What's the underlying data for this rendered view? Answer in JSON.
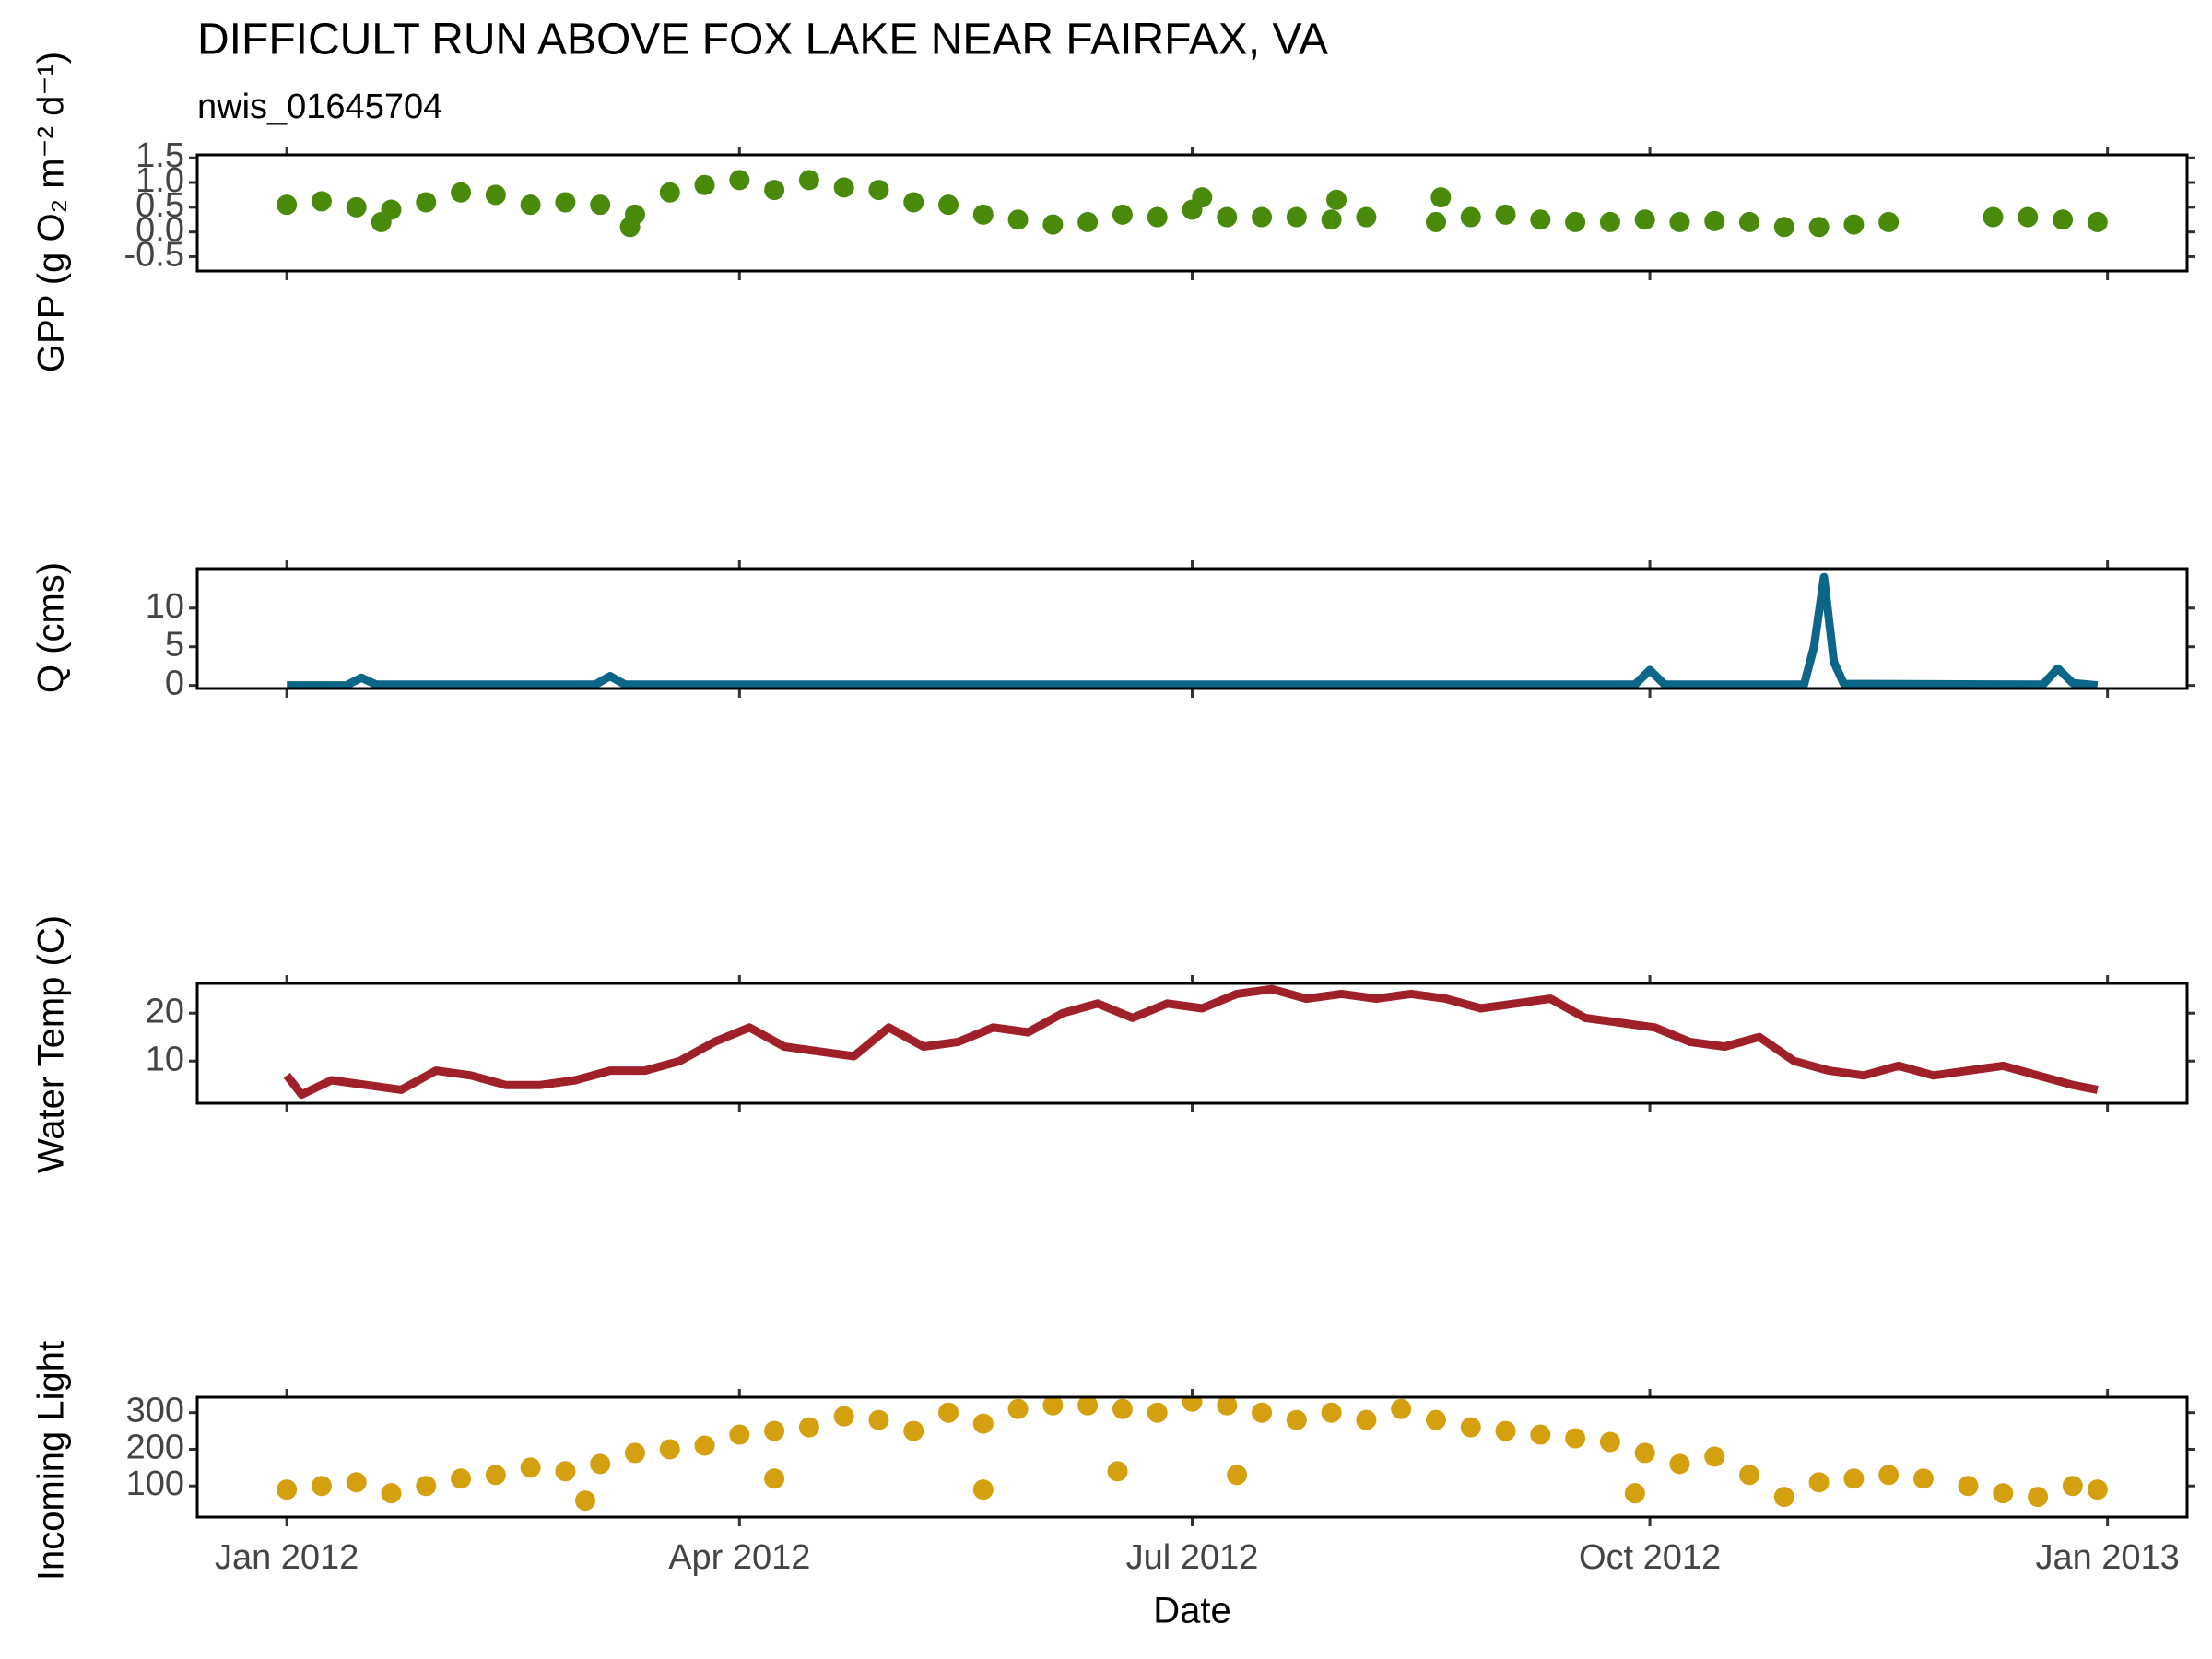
{
  "chart_data": [
    {
      "type": "scatter",
      "title": "DIFFICULT RUN ABOVE FOX LAKE NEAR FAIRFAX, VA",
      "subtitle": "nwis_01645704",
      "y_label": "GPP (g  O₂ m⁻² d⁻¹)",
      "color": "#4a8a0a",
      "x": [
        "2012-01-01",
        "2012-01-08",
        "2012-01-15",
        "2012-01-20",
        "2012-01-22",
        "2012-01-29",
        "2012-02-05",
        "2012-02-12",
        "2012-02-19",
        "2012-02-26",
        "2012-03-04",
        "2012-03-10",
        "2012-03-11",
        "2012-03-18",
        "2012-03-25",
        "2012-04-01",
        "2012-04-08",
        "2012-04-15",
        "2012-04-22",
        "2012-04-29",
        "2012-05-06",
        "2012-05-13",
        "2012-05-20",
        "2012-05-27",
        "2012-06-03",
        "2012-06-10",
        "2012-06-17",
        "2012-06-24",
        "2012-07-01",
        "2012-07-03",
        "2012-07-08",
        "2012-07-15",
        "2012-07-22",
        "2012-07-29",
        "2012-07-30",
        "2012-08-05",
        "2012-08-19",
        "2012-08-20",
        "2012-08-26",
        "2012-09-02",
        "2012-09-09",
        "2012-09-16",
        "2012-09-23",
        "2012-09-30",
        "2012-10-07",
        "2012-10-14",
        "2012-10-21",
        "2012-10-28",
        "2012-11-04",
        "2012-11-11",
        "2012-11-18",
        "2012-12-09",
        "2012-12-16",
        "2012-12-23",
        "2012-12-30"
      ],
      "values": [
        0.55,
        0.62,
        0.5,
        0.2,
        0.45,
        0.6,
        0.8,
        0.75,
        0.55,
        0.6,
        0.55,
        0.1,
        0.35,
        0.8,
        0.95,
        1.05,
        0.85,
        1.05,
        0.9,
        0.85,
        0.6,
        0.55,
        0.35,
        0.25,
        0.15,
        0.2,
        0.35,
        0.3,
        0.45,
        0.7,
        0.3,
        0.3,
        0.3,
        0.25,
        0.65,
        0.3,
        0.2,
        0.7,
        0.3,
        0.35,
        0.25,
        0.2,
        0.2,
        0.25,
        0.2,
        0.22,
        0.2,
        0.1,
        0.1,
        0.15,
        0.2,
        0.3,
        0.3,
        0.25,
        0.2
      ],
      "ylim": [
        -0.79,
        1.56
      ],
      "yticks": [
        -0.5,
        {
          "value": 0,
          "label": "0.0"
        },
        0.5,
        {
          "value": 1,
          "label": "1.0"
        },
        1.5
      ]
    },
    {
      "type": "line",
      "y_label": "Q (cms)",
      "color": "#0c6688",
      "x": [
        "2012-01-01",
        "2012-01-13",
        "2012-01-16",
        "2012-01-19",
        "2012-03-03",
        "2012-03-06",
        "2012-03-09",
        "2012-09-28",
        "2012-10-01",
        "2012-10-04",
        "2012-11-01",
        "2012-11-03",
        "2012-11-05",
        "2012-11-07",
        "2012-11-09",
        "2012-12-19",
        "2012-12-22",
        "2012-12-25",
        "2012-12-30"
      ],
      "values": [
        0,
        0,
        1.0,
        0.1,
        0.1,
        1.2,
        0.1,
        0.1,
        2.0,
        0.1,
        0.1,
        5,
        14,
        3,
        0.2,
        0.1,
        2.2,
        0.3,
        0
      ],
      "ylim": [
        -0.4,
        15.1
      ],
      "yticks": [
        0,
        5,
        10
      ]
    },
    {
      "type": "line",
      "y_label": "Water Temp (C)",
      "color": "#a0202a",
      "x": [
        "2012-01-01",
        "2012-01-04",
        "2012-01-10",
        "2012-01-17",
        "2012-01-24",
        "2012-01-31",
        "2012-02-07",
        "2012-02-14",
        "2012-02-21",
        "2012-02-28",
        "2012-03-06",
        "2012-03-13",
        "2012-03-20",
        "2012-03-27",
        "2012-04-03",
        "2012-04-10",
        "2012-04-17",
        "2012-04-24",
        "2012-05-01",
        "2012-05-08",
        "2012-05-15",
        "2012-05-22",
        "2012-05-29",
        "2012-06-05",
        "2012-06-12",
        "2012-06-19",
        "2012-06-26",
        "2012-07-03",
        "2012-07-10",
        "2012-07-17",
        "2012-07-24",
        "2012-07-31",
        "2012-08-07",
        "2012-08-14",
        "2012-08-21",
        "2012-08-28",
        "2012-09-04",
        "2012-09-11",
        "2012-09-18",
        "2012-09-25",
        "2012-10-02",
        "2012-10-09",
        "2012-10-16",
        "2012-10-23",
        "2012-10-30",
        "2012-11-06",
        "2012-11-13",
        "2012-11-20",
        "2012-11-27",
        "2012-12-04",
        "2012-12-11",
        "2012-12-18",
        "2012-12-25",
        "2012-12-30"
      ],
      "values": [
        7,
        3,
        6,
        5,
        4,
        8,
        7,
        5,
        5,
        6,
        8,
        8,
        10,
        14,
        17,
        13,
        12,
        11,
        17,
        13,
        14,
        17,
        16,
        20,
        22,
        19,
        22,
        21,
        24,
        25,
        23,
        24,
        23,
        24,
        23,
        21,
        22,
        23,
        19,
        18,
        17,
        14,
        13,
        15,
        10,
        8,
        7,
        9,
        7,
        8,
        9,
        7,
        5,
        4
      ],
      "ylim": [
        1.2,
        26.2
      ],
      "yticks": [
        10,
        20
      ]
    },
    {
      "type": "scatter",
      "y_label": "Incoming Light",
      "x_label": "Date",
      "color": "#d4a010",
      "x": [
        "2012-01-01",
        "2012-01-08",
        "2012-01-15",
        "2012-01-22",
        "2012-01-29",
        "2012-02-05",
        "2012-02-12",
        "2012-02-19",
        "2012-02-26",
        "2012-03-01",
        "2012-03-04",
        "2012-03-11",
        "2012-03-18",
        "2012-03-25",
        "2012-04-01",
        "2012-04-08",
        "2012-04-08",
        "2012-04-15",
        "2012-04-22",
        "2012-04-29",
        "2012-05-06",
        "2012-05-13",
        "2012-05-20",
        "2012-05-20",
        "2012-05-27",
        "2012-06-03",
        "2012-06-10",
        "2012-06-16",
        "2012-06-17",
        "2012-06-24",
        "2012-07-01",
        "2012-07-08",
        "2012-07-10",
        "2012-07-15",
        "2012-07-22",
        "2012-07-29",
        "2012-08-05",
        "2012-08-12",
        "2012-08-19",
        "2012-08-26",
        "2012-09-02",
        "2012-09-09",
        "2012-09-16",
        "2012-09-23",
        "2012-09-28",
        "2012-09-30",
        "2012-10-07",
        "2012-10-14",
        "2012-10-21",
        "2012-10-28",
        "2012-11-04",
        "2012-11-11",
        "2012-11-18",
        "2012-11-25",
        "2012-12-04",
        "2012-12-11",
        "2012-12-18",
        "2012-12-25",
        "2012-12-30"
      ],
      "values": [
        90,
        100,
        110,
        80,
        100,
        120,
        130,
        150,
        140,
        60,
        160,
        190,
        200,
        210,
        240,
        120,
        250,
        260,
        290,
        280,
        250,
        300,
        90,
        270,
        310,
        320,
        320,
        140,
        310,
        300,
        330,
        320,
        130,
        300,
        280,
        300,
        280,
        310,
        280,
        260,
        250,
        240,
        230,
        220,
        80,
        190,
        160,
        180,
        130,
        70,
        110,
        120,
        130,
        120,
        100,
        80,
        70,
        100,
        90
      ],
      "ylim": [
        15,
        342
      ],
      "yticks": [
        100,
        200,
        300
      ],
      "xlim": [
        "2011-12-14",
        "2013-01-17"
      ],
      "xticks": [
        {
          "value": "2012-01-01",
          "label": "Jan 2012"
        },
        {
          "value": "2012-04-01",
          "label": "Apr 2012"
        },
        {
          "value": "2012-07-01",
          "label": "Jul 2012"
        },
        {
          "value": "2012-10-01",
          "label": "Oct 2012"
        },
        {
          "value": "2013-01-01",
          "label": "Jan 2013"
        }
      ]
    }
  ]
}
